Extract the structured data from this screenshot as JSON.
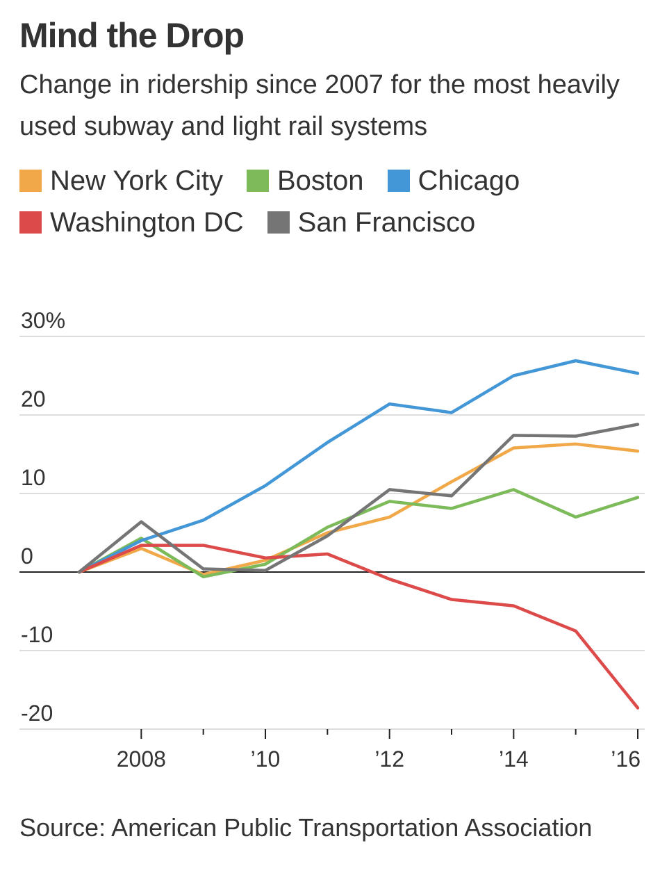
{
  "chart_data": {
    "type": "line",
    "title": "Mind the Drop",
    "subtitle": "Change in ridership since 2007 for the most heavily used subway and light rail systems",
    "source": "Source: American Public Transportation Association",
    "x": [
      2007,
      2008,
      2009,
      2010,
      2011,
      2012,
      2013,
      2014,
      2015,
      2016
    ],
    "x_tick_labels": [
      {
        "x": 2008,
        "label": "2008"
      },
      {
        "x": 2010,
        "label": "’10"
      },
      {
        "x": 2012,
        "label": "’12"
      },
      {
        "x": 2014,
        "label": "’14"
      },
      {
        "x": 2016,
        "label": "’16"
      }
    ],
    "y_tick_labels": [
      {
        "y": 30,
        "label": "30%"
      },
      {
        "y": 20,
        "label": "20"
      },
      {
        "y": 10,
        "label": "10"
      },
      {
        "y": 0,
        "label": "0"
      },
      {
        "y": -10,
        "label": "-10"
      },
      {
        "y": -20,
        "label": "-20"
      }
    ],
    "ylim": [
      -20,
      30
    ],
    "grid": true,
    "legend_position": "top",
    "series": [
      {
        "name": "New York City",
        "color": "#f0a848",
        "values": [
          0,
          3,
          -0.3,
          1.5,
          5,
          7,
          11.5,
          15.8,
          16.3,
          15.4
        ]
      },
      {
        "name": "Boston",
        "color": "#7cba5a",
        "values": [
          0,
          4.3,
          -0.6,
          1,
          5.7,
          9,
          8.1,
          10.5,
          7,
          9.5
        ]
      },
      {
        "name": "Chicago",
        "color": "#4397d6",
        "values": [
          0,
          4,
          6.6,
          11,
          16.5,
          21.4,
          20.3,
          25,
          26.9,
          25.3
        ]
      },
      {
        "name": "Washington DC",
        "color": "#dc4a4a",
        "values": [
          0,
          3.4,
          3.4,
          1.8,
          2.3,
          -0.9,
          -3.5,
          -4.3,
          -7.5,
          -17.3
        ]
      },
      {
        "name": "San Francisco",
        "color": "#757575",
        "values": [
          0,
          6.4,
          0.4,
          0.2,
          4.6,
          10.5,
          9.7,
          17.4,
          17.3,
          18.8
        ]
      }
    ]
  }
}
